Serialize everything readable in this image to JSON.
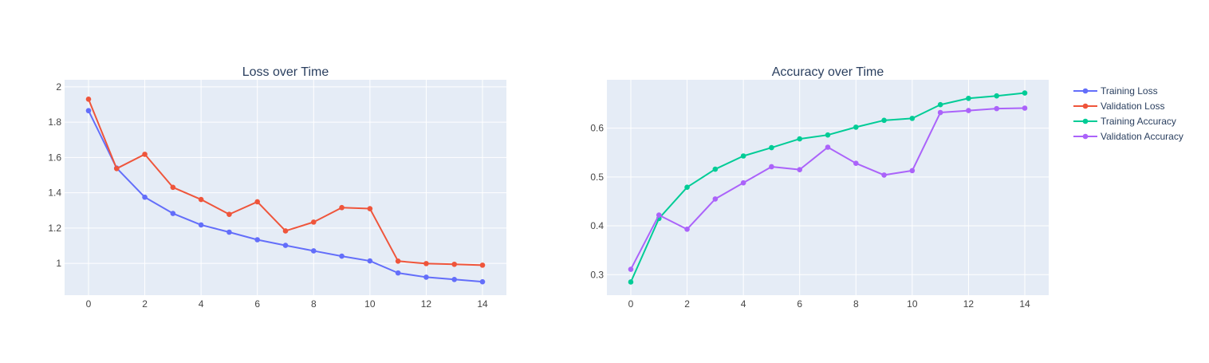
{
  "chart_data": [
    {
      "type": "line",
      "title": "Loss over Time",
      "x": [
        0,
        1,
        2,
        3,
        4,
        5,
        6,
        7,
        8,
        9,
        10,
        11,
        12,
        13,
        14
      ],
      "xlim": [
        -0.85,
        14.85
      ],
      "ylim": [
        0.82,
        2.04
      ],
      "xticks": [
        0,
        2,
        4,
        6,
        8,
        10,
        12,
        14
      ],
      "yticks": [
        1,
        1.2,
        1.4,
        1.6,
        1.8,
        2
      ],
      "ytick_labels": [
        "1",
        "1.2",
        "1.4",
        "1.6",
        "1.8",
        "2"
      ],
      "grid": true,
      "series": [
        {
          "name": "Training Loss",
          "color": "#636efa",
          "values": [
            1.865,
            1.54,
            1.375,
            1.283,
            1.218,
            1.177,
            1.134,
            1.102,
            1.071,
            1.041,
            1.014,
            0.946,
            0.922,
            0.909,
            0.896
          ]
        },
        {
          "name": "Validation Loss",
          "color": "#ef553b",
          "values": [
            1.93,
            1.537,
            1.618,
            1.431,
            1.362,
            1.278,
            1.349,
            1.184,
            1.234,
            1.316,
            1.31,
            1.013,
            0.999,
            0.995,
            0.99
          ]
        }
      ]
    },
    {
      "type": "line",
      "title": "Accuracy over Time",
      "x": [
        0,
        1,
        2,
        3,
        4,
        5,
        6,
        7,
        8,
        9,
        10,
        11,
        12,
        13,
        14
      ],
      "xlim": [
        -0.85,
        14.85
      ],
      "ylim": [
        0.258,
        0.699
      ],
      "xticks": [
        0,
        2,
        4,
        6,
        8,
        10,
        12,
        14
      ],
      "yticks": [
        0.3,
        0.4,
        0.5,
        0.6
      ],
      "ytick_labels": [
        "0.3",
        "0.4",
        "0.5",
        "0.6"
      ],
      "grid": true,
      "series": [
        {
          "name": "Training Accuracy",
          "color": "#00cc96",
          "values": [
            0.285,
            0.415,
            0.479,
            0.516,
            0.543,
            0.56,
            0.578,
            0.586,
            0.602,
            0.616,
            0.62,
            0.648,
            0.661,
            0.666,
            0.672
          ]
        },
        {
          "name": "Validation Accuracy",
          "color": "#ab63fa",
          "values": [
            0.311,
            0.422,
            0.393,
            0.455,
            0.488,
            0.521,
            0.515,
            0.561,
            0.528,
            0.504,
            0.513,
            0.632,
            0.636,
            0.64,
            0.641
          ]
        }
      ]
    }
  ],
  "legend": {
    "placement": "top-right",
    "items": [
      {
        "label": "Training Loss",
        "color": "#636efa"
      },
      {
        "label": "Validation Loss",
        "color": "#ef553b"
      },
      {
        "label": "Training Accuracy",
        "color": "#00cc96"
      },
      {
        "label": "Validation Accuracy",
        "color": "#ab63fa"
      }
    ]
  }
}
